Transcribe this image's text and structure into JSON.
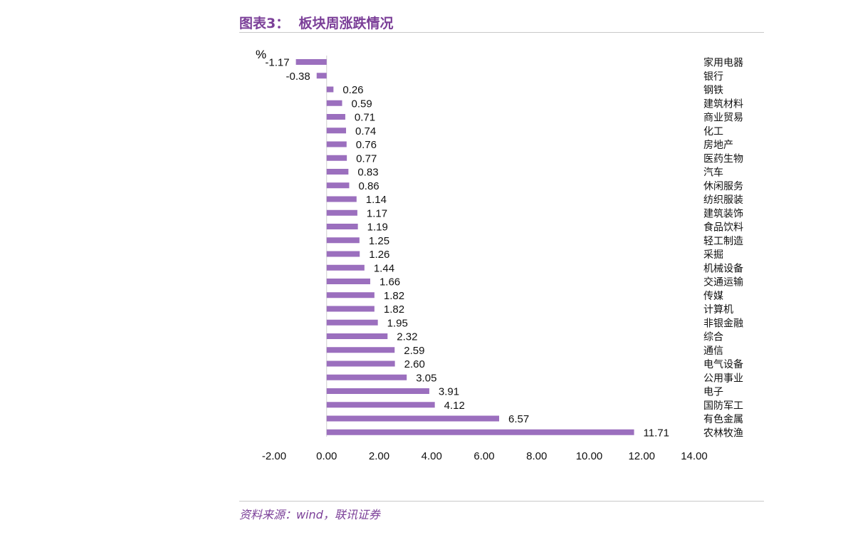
{
  "header": {
    "title": "图表3：  板块周涨跌情况"
  },
  "footer": {
    "source": "资料来源：wind，联讯证券"
  },
  "chart_data": {
    "type": "bar",
    "orientation": "horizontal",
    "unit_label": "%",
    "categories": [
      "家用电器",
      "银行",
      "钢铁",
      "建筑材料",
      "商业贸易",
      "化工",
      "房地产",
      "医药生物",
      "汽车",
      "休闲服务",
      "纺织服装",
      "建筑装饰",
      "食品饮料",
      "轻工制造",
      "采掘",
      "机械设备",
      "交通运输",
      "传媒",
      "计算机",
      "非银金融",
      "综合",
      "通信",
      "电气设备",
      "公用事业",
      "电子",
      "国防军工",
      "有色金属",
      "农林牧渔"
    ],
    "values": [
      -1.17,
      -0.38,
      0.26,
      0.59,
      0.71,
      0.74,
      0.76,
      0.77,
      0.83,
      0.86,
      1.14,
      1.17,
      1.19,
      1.25,
      1.26,
      1.44,
      1.66,
      1.82,
      1.82,
      1.95,
      2.32,
      2.59,
      2.6,
      3.05,
      3.91,
      4.12,
      6.57,
      11.71
    ],
    "value_labels": [
      "-1.17",
      "-0.38",
      "0.26",
      "0.59",
      "0.71",
      "0.74",
      "0.76",
      "0.77",
      "0.83",
      "0.86",
      "1.14",
      "1.17",
      "1.19",
      "1.25",
      "1.26",
      "1.44",
      "1.66",
      "1.82",
      "1.82",
      "1.95",
      "2.32",
      "2.59",
      "2.60",
      "3.05",
      "3.91",
      "4.12",
      "6.57",
      "11.71"
    ],
    "xlim": [
      -2,
      14
    ],
    "ticks": [
      -2,
      0,
      2,
      4,
      6,
      8,
      10,
      12,
      14
    ],
    "tick_labels": [
      "-2.00",
      "0.00",
      "2.00",
      "4.00",
      "6.00",
      "8.00",
      "10.00",
      "12.00",
      "14.00"
    ],
    "bar_color": "#9b6fbe",
    "grid": false,
    "legend": "none"
  }
}
